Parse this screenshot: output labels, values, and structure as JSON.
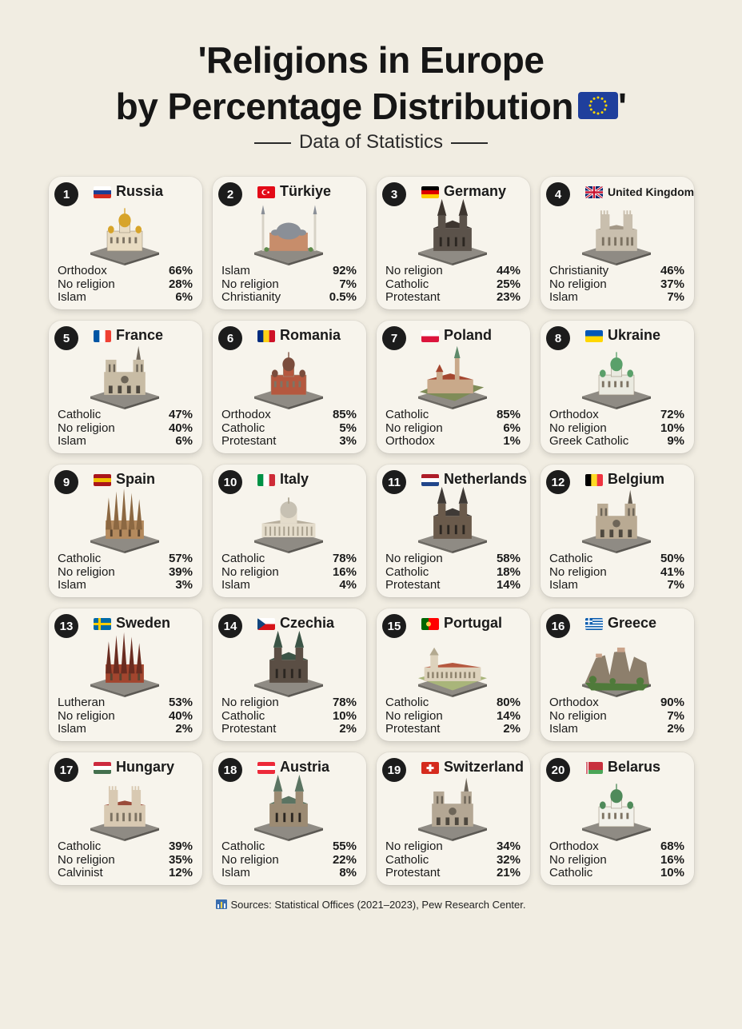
{
  "title": {
    "line1": "'Religions in Europe",
    "line2": "by Percentage Distribution",
    "quote_end": "'",
    "flag_icon": "eu-flag-icon"
  },
  "subtitle": "Data of Statistics",
  "countries": [
    {
      "rank": "1",
      "name": "Russia",
      "flag": [
        "#ffffff",
        "#1c3f94",
        "#d52b1e"
      ],
      "flag_dir": "h",
      "rows": [
        {
          "label": "Orthodox",
          "pct": "66%"
        },
        {
          "label": "No religion",
          "pct": "28%"
        },
        {
          "label": "Islam",
          "pct": "6%"
        }
      ],
      "building": "cathedral-domes",
      "bld_color": "#e9dcc2",
      "roof_color": "#d7a42a"
    },
    {
      "rank": "2",
      "name": "Türkiye",
      "flag": [
        "#e30a17"
      ],
      "flag_dir": "solid",
      "rows": [
        {
          "label": "Islam",
          "pct": "92%"
        },
        {
          "label": "No religion",
          "pct": "7%"
        },
        {
          "label": "Christianity",
          "pct": "0.5%"
        }
      ],
      "building": "mosque",
      "bld_color": "#c78d6b",
      "roof_color": "#8a8f97"
    },
    {
      "rank": "3",
      "name": "Germany",
      "flag": [
        "#000000",
        "#dd0000",
        "#ffce00"
      ],
      "flag_dir": "h",
      "rows": [
        {
          "label": "No religion",
          "pct": "44%"
        },
        {
          "label": "Catholic",
          "pct": "25%"
        },
        {
          "label": "Protestant",
          "pct": "23%"
        }
      ],
      "building": "gothic",
      "bld_color": "#5b524a",
      "roof_color": "#3e3630"
    },
    {
      "rank": "4",
      "name": "United Kingdom",
      "flag": [
        "#012169",
        "#ffffff",
        "#c8102e"
      ],
      "flag_dir": "uk",
      "rows": [
        {
          "label": "Christianity",
          "pct": "46%"
        },
        {
          "label": "No religion",
          "pct": "37%"
        },
        {
          "label": "Islam",
          "pct": "7%"
        }
      ],
      "building": "abbey",
      "bld_color": "#c9bfae",
      "roof_color": "#a39887"
    },
    {
      "rank": "5",
      "name": "France",
      "flag": [
        "#0055a4",
        "#ffffff",
        "#ef4135"
      ],
      "flag_dir": "v",
      "rows": [
        {
          "label": "Catholic",
          "pct": "47%"
        },
        {
          "label": "No religion",
          "pct": "40%"
        },
        {
          "label": "Islam",
          "pct": "6%"
        }
      ],
      "building": "twin-tower",
      "bld_color": "#c8bca5",
      "roof_color": "#6f675b"
    },
    {
      "rank": "6",
      "name": "Romania",
      "flag": [
        "#002b7f",
        "#fcd116",
        "#ce1126"
      ],
      "flag_dir": "v",
      "rows": [
        {
          "label": "Orthodox",
          "pct": "85%"
        },
        {
          "label": "Catholic",
          "pct": "5%"
        },
        {
          "label": "Protestant",
          "pct": "3%"
        }
      ],
      "building": "cathedral-domes",
      "bld_color": "#b5583f",
      "roof_color": "#7a4c3c"
    },
    {
      "rank": "7",
      "name": "Poland",
      "flag": [
        "#ffffff",
        "#dc143c"
      ],
      "flag_dir": "h",
      "rows": [
        {
          "label": "Catholic",
          "pct": "85%"
        },
        {
          "label": "No religion",
          "pct": "6%"
        },
        {
          "label": "Orthodox",
          "pct": "1%"
        }
      ],
      "building": "castle",
      "bld_color": "#c9a98a",
      "roof_color": "#a4462f"
    },
    {
      "rank": "8",
      "name": "Ukraine",
      "flag": [
        "#0057b7",
        "#ffd700"
      ],
      "flag_dir": "h",
      "rows": [
        {
          "label": "Orthodox",
          "pct": "72%"
        },
        {
          "label": "No religion",
          "pct": "10%"
        },
        {
          "label": "Greek Catholic",
          "pct": "9%"
        }
      ],
      "building": "cathedral-domes",
      "bld_color": "#eaeae0",
      "roof_color": "#5aa06a"
    },
    {
      "rank": "9",
      "name": "Spain",
      "flag": [
        "#aa151b",
        "#f1bf00",
        "#aa151b"
      ],
      "flag_dir": "h",
      "rows": [
        {
          "label": "Catholic",
          "pct": "57%"
        },
        {
          "label": "No religion",
          "pct": "39%"
        },
        {
          "label": "Islam",
          "pct": "3%"
        }
      ],
      "building": "spires",
      "bld_color": "#b48a5e",
      "roof_color": "#8c6842"
    },
    {
      "rank": "10",
      "name": "Italy",
      "flag": [
        "#009246",
        "#ffffff",
        "#ce2b37"
      ],
      "flag_dir": "v",
      "rows": [
        {
          "label": "Catholic",
          "pct": "78%"
        },
        {
          "label": "No religion",
          "pct": "16%"
        },
        {
          "label": "Islam",
          "pct": "4%"
        }
      ],
      "building": "basilica",
      "bld_color": "#e4dccb",
      "roof_color": "#b7ae9c"
    },
    {
      "rank": "11",
      "name": "Netherlands",
      "flag": [
        "#ae1c28",
        "#ffffff",
        "#21468b"
      ],
      "flag_dir": "h",
      "rows": [
        {
          "label": "No religion",
          "pct": "58%"
        },
        {
          "label": "Catholic",
          "pct": "18%"
        },
        {
          "label": "Protestant",
          "pct": "14%"
        }
      ],
      "building": "gothic",
      "bld_color": "#6a5a4b",
      "roof_color": "#3f3a36"
    },
    {
      "rank": "12",
      "name": "Belgium",
      "flag": [
        "#000000",
        "#fdda24",
        "#ef3340"
      ],
      "flag_dir": "v",
      "rows": [
        {
          "label": "Catholic",
          "pct": "50%"
        },
        {
          "label": "No religion",
          "pct": "41%"
        },
        {
          "label": "Islam",
          "pct": "7%"
        }
      ],
      "building": "twin-tower",
      "bld_color": "#b9aa93",
      "roof_color": "#5f574c"
    },
    {
      "rank": "13",
      "name": "Sweden",
      "flag": [
        "#006aa7",
        "#fecc00"
      ],
      "flag_dir": "nordic",
      "rows": [
        {
          "label": "Lutheran",
          "pct": "53%"
        },
        {
          "label": "No religion",
          "pct": "40%"
        },
        {
          "label": "Islam",
          "pct": "2%"
        }
      ],
      "building": "spires",
      "bld_color": "#a2452e",
      "roof_color": "#6a2c20"
    },
    {
      "rank": "14",
      "name": "Czechia",
      "flag": [
        "#ffffff",
        "#d7141a",
        "#11457e"
      ],
      "flag_dir": "cz",
      "rows": [
        {
          "label": "No religion",
          "pct": "78%"
        },
        {
          "label": "Catholic",
          "pct": "10%"
        },
        {
          "label": "Protestant",
          "pct": "2%"
        }
      ],
      "building": "gothic",
      "bld_color": "#5a4e44",
      "roof_color": "#3b5446"
    },
    {
      "rank": "15",
      "name": "Portugal",
      "flag": [
        "#006600",
        "#ff0000"
      ],
      "flag_dir": "pt",
      "rows": [
        {
          "label": "Catholic",
          "pct": "80%"
        },
        {
          "label": "No religion",
          "pct": "14%"
        },
        {
          "label": "Protestant",
          "pct": "2%"
        }
      ],
      "building": "monastery",
      "bld_color": "#ddd2bc",
      "roof_color": "#b5583f"
    },
    {
      "rank": "16",
      "name": "Greece",
      "flag": [
        "#0d5eaf",
        "#ffffff"
      ],
      "flag_dir": "stripes",
      "rows": [
        {
          "label": "Orthodox",
          "pct": "90%"
        },
        {
          "label": "No religion",
          "pct": "7%"
        },
        {
          "label": "Islam",
          "pct": "2%"
        }
      ],
      "building": "rocks",
      "bld_color": "#8d7f6c",
      "roof_color": "#4f7a3a"
    },
    {
      "rank": "17",
      "name": "Hungary",
      "flag": [
        "#cd2a3e",
        "#ffffff",
        "#436f4d"
      ],
      "flag_dir": "h",
      "rows": [
        {
          "label": "Catholic",
          "pct": "39%"
        },
        {
          "label": "No religion",
          "pct": "35%"
        },
        {
          "label": "Calvinist",
          "pct": "12%"
        }
      ],
      "building": "abbey",
      "bld_color": "#d8c9b2",
      "roof_color": "#9a4b3a"
    },
    {
      "rank": "18",
      "name": "Austria",
      "flag": [
        "#ed2939",
        "#ffffff",
        "#ed2939"
      ],
      "flag_dir": "h",
      "rows": [
        {
          "label": "Catholic",
          "pct": "55%"
        },
        {
          "label": "No religion",
          "pct": "22%"
        },
        {
          "label": "Islam",
          "pct": "8%"
        }
      ],
      "building": "gothic",
      "bld_color": "#9c8b73",
      "roof_color": "#5b7462"
    },
    {
      "rank": "19",
      "name": "Switzerland",
      "flag": [
        "#d52b1e"
      ],
      "flag_dir": "ch",
      "rows": [
        {
          "label": "No religion",
          "pct": "34%"
        },
        {
          "label": "Catholic",
          "pct": "32%"
        },
        {
          "label": "Protestant",
          "pct": "21%"
        }
      ],
      "building": "twin-tower",
      "bld_color": "#b4a794",
      "roof_color": "#6b6357"
    },
    {
      "rank": "20",
      "name": "Belarus",
      "flag": [
        "#c8313e",
        "#4aa657"
      ],
      "flag_dir": "by",
      "rows": [
        {
          "label": "Orthodox",
          "pct": "68%"
        },
        {
          "label": "No religion",
          "pct": "16%"
        },
        {
          "label": "Catholic",
          "pct": "10%"
        }
      ],
      "building": "cathedral-domes",
      "bld_color": "#f2f1ea",
      "roof_color": "#4f8a5a"
    }
  ],
  "footer": {
    "icon": "bar-chart-icon",
    "text": "Sources: Statistical Offices (2021–2023), Pew Research Center."
  }
}
